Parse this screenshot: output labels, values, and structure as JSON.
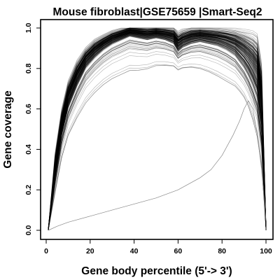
{
  "chart_data": {
    "type": "line",
    "title": "Mouse fibroblast|GSE75659 |Smart-Seq2",
    "xlabel": "Gene body percentile (5'-> 3')",
    "ylabel": "Gene coverage",
    "xlim": [
      0,
      100
    ],
    "ylim": [
      0,
      1
    ],
    "xticks": [
      0,
      20,
      40,
      60,
      80,
      100
    ],
    "yticks": [
      0.0,
      0.2,
      0.4,
      0.6,
      0.8,
      1.0
    ],
    "xtick_labels": [
      "0",
      "20",
      "40",
      "60",
      "80",
      "100"
    ],
    "ytick_labels": [
      "0.0",
      "0.2",
      "0.4",
      "0.6",
      "0.8",
      "1.0"
    ],
    "grid": false,
    "legend": false,
    "line_color": "#000000",
    "outlier_color": "#888888",
    "bundle": {
      "count": 200,
      "x": [
        1,
        4,
        7,
        10,
        14,
        18,
        22,
        26,
        30,
        34,
        38,
        42,
        46,
        50,
        54,
        58,
        60,
        62,
        66,
        70,
        74,
        78,
        82,
        86,
        88,
        90,
        92,
        94,
        96,
        98,
        100
      ],
      "median": [
        0.0,
        0.26,
        0.47,
        0.61,
        0.72,
        0.81,
        0.86,
        0.9,
        0.93,
        0.95,
        0.97,
        0.96,
        0.95,
        0.96,
        0.95,
        0.93,
        0.89,
        0.91,
        0.93,
        0.94,
        0.93,
        0.92,
        0.9,
        0.87,
        0.84,
        0.81,
        0.77,
        0.72,
        0.66,
        0.48,
        0.0
      ],
      "upper": [
        0.0,
        0.38,
        0.6,
        0.74,
        0.84,
        0.9,
        0.94,
        0.96,
        0.98,
        0.99,
        1.0,
        1.0,
        1.0,
        1.0,
        1.0,
        1.0,
        0.98,
        0.99,
        1.0,
        1.0,
        1.0,
        1.0,
        1.0,
        1.0,
        1.0,
        1.0,
        1.0,
        1.0,
        0.99,
        0.85,
        0.02
      ],
      "lower": [
        0.0,
        0.12,
        0.26,
        0.35,
        0.42,
        0.48,
        0.53,
        0.57,
        0.6,
        0.62,
        0.64,
        0.65,
        0.67,
        0.69,
        0.7,
        0.71,
        0.71,
        0.71,
        0.7,
        0.68,
        0.66,
        0.63,
        0.6,
        0.58,
        0.56,
        0.53,
        0.48,
        0.4,
        0.3,
        0.18,
        0.0
      ]
    },
    "outlier_series": {
      "x": [
        1,
        5,
        10,
        20,
        30,
        40,
        50,
        60,
        70,
        75,
        80,
        85,
        88,
        90,
        92,
        94,
        96,
        98,
        100
      ],
      "values": [
        0.0,
        0.02,
        0.04,
        0.07,
        0.1,
        0.13,
        0.16,
        0.2,
        0.26,
        0.3,
        0.37,
        0.47,
        0.54,
        0.6,
        0.64,
        0.6,
        0.48,
        0.3,
        0.05
      ]
    }
  }
}
